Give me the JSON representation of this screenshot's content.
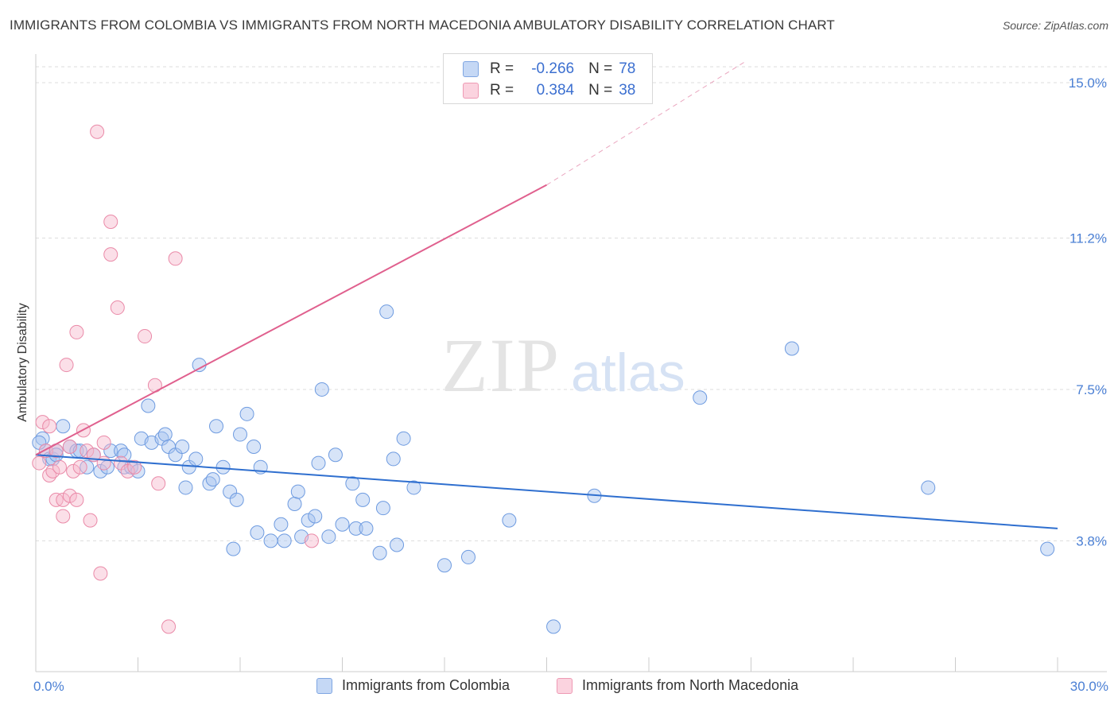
{
  "header": {
    "title": "IMMIGRANTS FROM COLOMBIA VS IMMIGRANTS FROM NORTH MACEDONIA AMBULATORY DISABILITY CORRELATION CHART",
    "source": "Source: ZipAtlas.com"
  },
  "watermark": {
    "zip": "ZIP",
    "atlas": "atlas"
  },
  "legend": {
    "rows": [
      {
        "r_label": "R =",
        "r_value": "-0.266",
        "n_label": "N =",
        "n_value": "78",
        "color": "#a7c4ef",
        "stroke": "#6e9be0"
      },
      {
        "r_label": "R =",
        "r_value": "0.384",
        "n_label": "N =",
        "n_value": "38",
        "color": "#f7b9cc",
        "stroke": "#ea8aa8"
      }
    ]
  },
  "bottom_legend": {
    "colombia": "Immigrants from Colombia",
    "macedonia": "Immigrants from North Macedonia"
  },
  "colors": {
    "blue_line": "#2f6fcf",
    "pink_line": "#e0608e",
    "blue_fill": "#a7c4ef",
    "pink_fill": "#f7b9cc",
    "tick_text": "#4a7fd4"
  },
  "chart_data": {
    "type": "scatter",
    "title": "IMMIGRANTS FROM COLOMBIA VS IMMIGRANTS FROM NORTH MACEDONIA AMBULATORY DISABILITY CORRELATION CHART",
    "xlabel": "",
    "ylabel": "Ambulatory Disability",
    "xlim": [
      0,
      30
    ],
    "ylim": [
      0.6,
      15.7
    ],
    "x_tick_labels": [
      {
        "value": 0,
        "label": "0.0%"
      },
      {
        "value": 30,
        "label": "30.0%"
      }
    ],
    "y_ticks": [
      {
        "value": 3.8,
        "label": "3.8%"
      },
      {
        "value": 7.5,
        "label": "7.5%"
      },
      {
        "value": 11.2,
        "label": "11.2%"
      },
      {
        "value": 15.0,
        "label": "15.0%"
      }
    ],
    "x_minor_ticks": [
      3,
      6,
      9,
      12,
      15,
      18,
      21,
      24,
      27,
      30
    ],
    "series": [
      {
        "name": "Immigrants from Colombia",
        "r": -0.266,
        "n": 78,
        "trend": {
          "x0": 0,
          "y0": 5.9,
          "x1": 30,
          "y1": 4.1
        },
        "points": [
          [
            0.2,
            6.3
          ],
          [
            0.3,
            6.0
          ],
          [
            0.4,
            5.8
          ],
          [
            0.5,
            5.8
          ],
          [
            0.6,
            6.0
          ],
          [
            0.8,
            6.6
          ],
          [
            1.0,
            6.1
          ],
          [
            1.2,
            6.0
          ],
          [
            1.3,
            6.0
          ],
          [
            1.5,
            5.6
          ],
          [
            1.7,
            5.9
          ],
          [
            1.9,
            5.5
          ],
          [
            2.1,
            5.6
          ],
          [
            2.2,
            6.0
          ],
          [
            2.5,
            6.0
          ],
          [
            2.6,
            5.9
          ],
          [
            2.6,
            5.6
          ],
          [
            2.8,
            5.6
          ],
          [
            3.0,
            5.5
          ],
          [
            3.1,
            6.3
          ],
          [
            3.3,
            7.1
          ],
          [
            3.4,
            6.2
          ],
          [
            3.7,
            6.3
          ],
          [
            3.8,
            6.4
          ],
          [
            3.9,
            6.1
          ],
          [
            4.1,
            5.9
          ],
          [
            4.3,
            6.1
          ],
          [
            4.4,
            5.1
          ],
          [
            4.5,
            5.6
          ],
          [
            4.7,
            5.8
          ],
          [
            4.8,
            8.1
          ],
          [
            5.1,
            5.2
          ],
          [
            5.2,
            5.3
          ],
          [
            5.3,
            6.6
          ],
          [
            5.5,
            5.6
          ],
          [
            5.7,
            5.0
          ],
          [
            5.8,
            3.6
          ],
          [
            5.9,
            4.8
          ],
          [
            6.0,
            6.4
          ],
          [
            6.2,
            6.9
          ],
          [
            6.4,
            6.1
          ],
          [
            6.5,
            4.0
          ],
          [
            6.6,
            5.6
          ],
          [
            6.9,
            3.8
          ],
          [
            7.2,
            4.2
          ],
          [
            7.3,
            3.8
          ],
          [
            7.6,
            4.7
          ],
          [
            7.7,
            5.0
          ],
          [
            7.8,
            3.9
          ],
          [
            8.0,
            4.3
          ],
          [
            8.2,
            4.4
          ],
          [
            8.3,
            5.7
          ],
          [
            8.4,
            7.5
          ],
          [
            8.6,
            3.9
          ],
          [
            8.8,
            5.9
          ],
          [
            9.0,
            4.2
          ],
          [
            9.3,
            5.2
          ],
          [
            9.4,
            4.1
          ],
          [
            9.6,
            4.8
          ],
          [
            9.7,
            4.1
          ],
          [
            10.1,
            3.5
          ],
          [
            10.2,
            4.6
          ],
          [
            10.3,
            9.4
          ],
          [
            10.5,
            5.8
          ],
          [
            10.6,
            3.7
          ],
          [
            10.8,
            6.3
          ],
          [
            11.1,
            5.1
          ],
          [
            12.0,
            3.2
          ],
          [
            12.7,
            3.4
          ],
          [
            13.9,
            4.3
          ],
          [
            15.2,
            1.7
          ],
          [
            16.4,
            4.9
          ],
          [
            19.5,
            7.3
          ],
          [
            22.2,
            8.5
          ],
          [
            26.2,
            5.1
          ],
          [
            29.7,
            3.6
          ],
          [
            0.1,
            6.2
          ],
          [
            0.6,
            5.9
          ]
        ]
      },
      {
        "name": "Immigrants from North Macedonia",
        "r": 0.384,
        "n": 38,
        "trend": {
          "x0": 0,
          "y0": 5.9,
          "x1": 15.0,
          "y1": 12.5,
          "dash_x1": 20.8,
          "dash_y1": 15.5
        },
        "points": [
          [
            0.1,
            5.7
          ],
          [
            0.2,
            6.7
          ],
          [
            0.3,
            6.0
          ],
          [
            0.4,
            5.4
          ],
          [
            0.4,
            6.6
          ],
          [
            0.5,
            5.5
          ],
          [
            0.6,
            4.8
          ],
          [
            0.6,
            6.0
          ],
          [
            0.7,
            5.6
          ],
          [
            0.8,
            4.4
          ],
          [
            0.8,
            4.8
          ],
          [
            0.9,
            8.1
          ],
          [
            1.0,
            4.9
          ],
          [
            1.0,
            6.1
          ],
          [
            1.1,
            5.5
          ],
          [
            1.2,
            8.9
          ],
          [
            1.2,
            4.8
          ],
          [
            1.3,
            5.6
          ],
          [
            1.4,
            6.5
          ],
          [
            1.5,
            6.0
          ],
          [
            1.6,
            4.3
          ],
          [
            1.7,
            5.9
          ],
          [
            1.8,
            13.8
          ],
          [
            1.9,
            3.0
          ],
          [
            2.0,
            5.7
          ],
          [
            2.0,
            6.2
          ],
          [
            2.2,
            11.6
          ],
          [
            2.2,
            10.8
          ],
          [
            2.4,
            9.5
          ],
          [
            2.5,
            5.7
          ],
          [
            2.7,
            5.5
          ],
          [
            2.9,
            5.6
          ],
          [
            3.2,
            8.8
          ],
          [
            3.5,
            7.6
          ],
          [
            3.6,
            5.2
          ],
          [
            3.9,
            1.7
          ],
          [
            4.1,
            10.7
          ],
          [
            8.1,
            3.8
          ]
        ]
      }
    ]
  }
}
